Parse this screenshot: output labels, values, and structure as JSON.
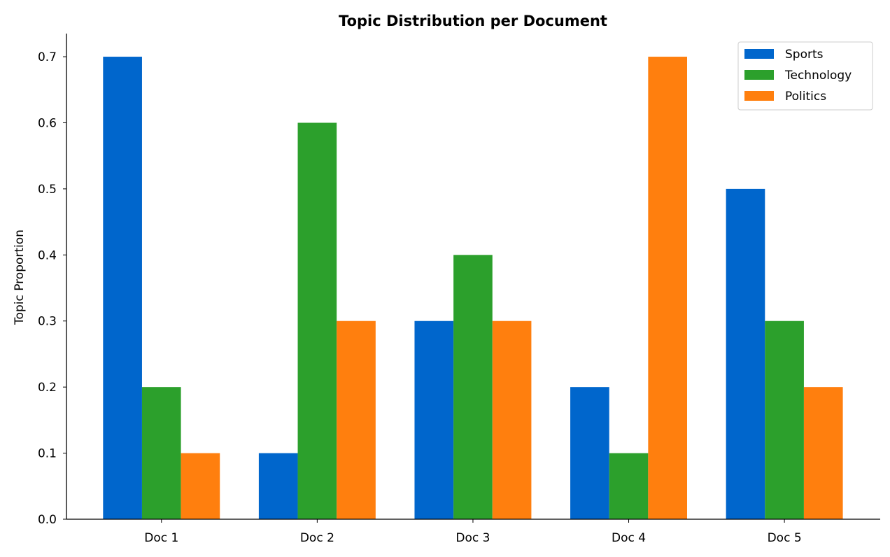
{
  "chart_data": {
    "type": "bar",
    "title": "Topic Distribution per Document",
    "xlabel": "",
    "ylabel": "Topic Proportion",
    "categories": [
      "Doc 1",
      "Doc 2",
      "Doc 3",
      "Doc 4",
      "Doc 5"
    ],
    "series": [
      {
        "name": "Sports",
        "color": "#0066cc",
        "values": [
          0.7,
          0.1,
          0.3,
          0.2,
          0.5
        ]
      },
      {
        "name": "Technology",
        "color": "#2ca02c",
        "values": [
          0.2,
          0.6,
          0.4,
          0.1,
          0.3
        ]
      },
      {
        "name": "Politics",
        "color": "#ff7f0e",
        "values": [
          0.1,
          0.3,
          0.3,
          0.7,
          0.2
        ]
      }
    ],
    "yticks": [
      "0.0",
      "0.1",
      "0.2",
      "0.3",
      "0.4",
      "0.5",
      "0.6",
      "0.7"
    ],
    "ylim": [
      0,
      0.735
    ],
    "grid": false,
    "legend": "top-right"
  }
}
